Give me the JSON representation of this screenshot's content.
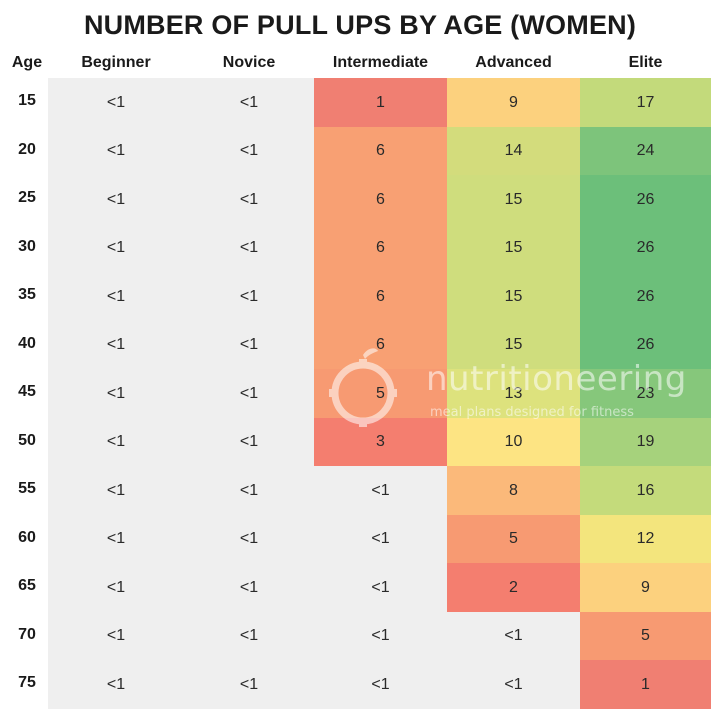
{
  "chart_data": {
    "type": "table",
    "title": "NUMBER OF PULL UPS BY AGE (WOMEN)",
    "row_header": "Age",
    "columns": [
      "Beginner",
      "Novice",
      "Intermediate",
      "Advanced",
      "Elite"
    ],
    "rows": [
      {
        "age": "15",
        "values": [
          "<1",
          "<1",
          "1",
          "9",
          "17"
        ]
      },
      {
        "age": "20",
        "values": [
          "<1",
          "<1",
          "6",
          "14",
          "24"
        ]
      },
      {
        "age": "25",
        "values": [
          "<1",
          "<1",
          "6",
          "15",
          "26"
        ]
      },
      {
        "age": "30",
        "values": [
          "<1",
          "<1",
          "6",
          "15",
          "26"
        ]
      },
      {
        "age": "35",
        "values": [
          "<1",
          "<1",
          "6",
          "15",
          "26"
        ]
      },
      {
        "age": "40",
        "values": [
          "<1",
          "<1",
          "6",
          "15",
          "26"
        ]
      },
      {
        "age": "45",
        "values": [
          "<1",
          "<1",
          "5",
          "13",
          "23"
        ]
      },
      {
        "age": "50",
        "values": [
          "<1",
          "<1",
          "3",
          "10",
          "19"
        ]
      },
      {
        "age": "55",
        "values": [
          "<1",
          "<1",
          "<1",
          "8",
          "16"
        ]
      },
      {
        "age": "60",
        "values": [
          "<1",
          "<1",
          "<1",
          "5",
          "12"
        ]
      },
      {
        "age": "65",
        "values": [
          "<1",
          "<1",
          "<1",
          "2",
          "9"
        ]
      },
      {
        "age": "70",
        "values": [
          "<1",
          "<1",
          "<1",
          "<1",
          "5"
        ]
      },
      {
        "age": "75",
        "values": [
          "<1",
          "<1",
          "<1",
          "<1",
          "1"
        ]
      }
    ],
    "cell_colors": {
      "plain": "#efefef",
      "1": "#f07f72",
      "2": "#f47e6f",
      "3": "#f47e6f",
      "5": "#f79a72",
      "6": "#f8a073",
      "8": "#fbb97a",
      "9": "#fcd17e",
      "10": "#fde483",
      "12": "#f3e57d",
      "13": "#dde27d",
      "14": "#d3dc7c",
      "15": "#cfdd7d",
      "16": "#c4db7b",
      "17": "#c3da7b",
      "19": "#a6d27c",
      "23": "#86c77b",
      "24": "#7dc47b",
      "26": "#6cbf7a"
    }
  },
  "watermark": {
    "brand": "nutritioneering",
    "tagline": "meal plans designed for fitness",
    "icon": "apple-gear-icon"
  }
}
